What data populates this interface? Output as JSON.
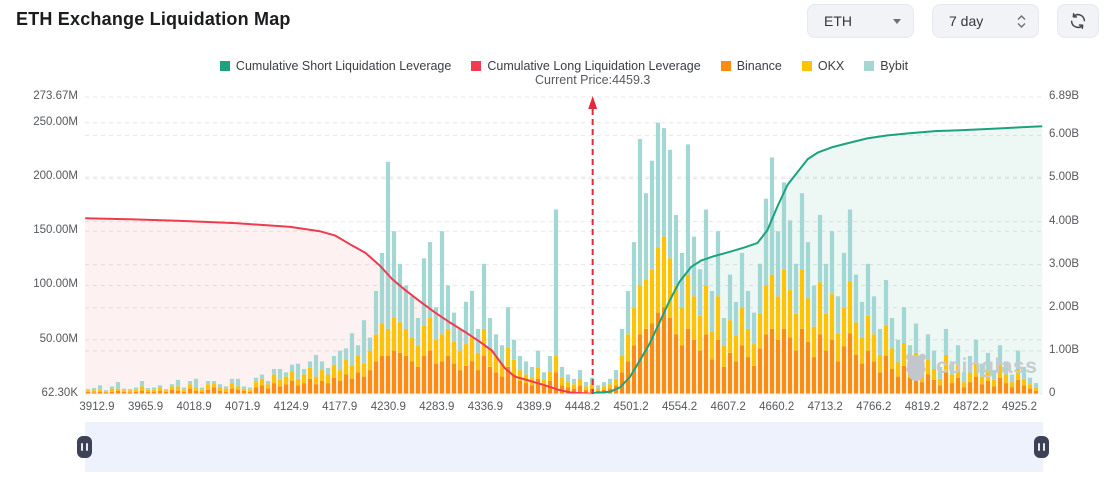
{
  "header": {
    "title": "ETH Exchange Liquidation Map"
  },
  "controls": {
    "symbol_select": {
      "value": "ETH"
    },
    "period_select": {
      "value": "7 day"
    }
  },
  "legend": {
    "items": [
      {
        "label": "Cumulative Short Liquidation Leverage",
        "color": "#1BA37E"
      },
      {
        "label": "Cumulative Long Liquidation Leverage",
        "color": "#F23B4C"
      },
      {
        "label": "Binance",
        "color": "#FD8C10"
      },
      {
        "label": "OKX",
        "color": "#FFC305"
      },
      {
        "label": "Bybit",
        "color": "#A2D7D3"
      }
    ]
  },
  "annotation": {
    "current_price_label": "Current Price:4459.3",
    "current_price": 4459.3
  },
  "watermark": {
    "text": "coinglass"
  },
  "chart_data": {
    "type": "bar",
    "subtype": "stacked-bars-with-cumulative-lines",
    "grid": true,
    "x_ticks": [
      3912.9,
      3965.9,
      4018.9,
      4071.9,
      4124.9,
      4177.9,
      4230.9,
      4283.9,
      4336.9,
      4389.9,
      4448.2,
      4501.2,
      4554.2,
      4607.2,
      4660.2,
      4713.2,
      4766.2,
      4819.2,
      4872.2,
      4925.2
    ],
    "current_price": 4459.3,
    "y_left": {
      "unit": "M",
      "max": 273.67,
      "labels": [
        {
          "text": "273.67M",
          "value": 273.67
        },
        {
          "text": "250.00M",
          "value": 250
        },
        {
          "text": "200.00M",
          "value": 200
        },
        {
          "text": "150.00M",
          "value": 150
        },
        {
          "text": "100.00M",
          "value": 100
        },
        {
          "text": "50.00M",
          "value": 50
        },
        {
          "text": "62.30K",
          "value": 0.0623
        }
      ]
    },
    "y_right": {
      "unit": "B",
      "max": 6.89,
      "labels": [
        {
          "text": "6.89B",
          "value": 6.89
        },
        {
          "text": "6.00B",
          "value": 6
        },
        {
          "text": "5.00B",
          "value": 5
        },
        {
          "text": "4.00B",
          "value": 4
        },
        {
          "text": "3.00B",
          "value": 3
        },
        {
          "text": "2.00B",
          "value": 2
        },
        {
          "text": "1.00B",
          "value": 1
        },
        {
          "text": "0",
          "value": 0
        }
      ]
    },
    "bars": {
      "unit": "M",
      "stack_order": [
        "Binance",
        "OKX",
        "Bybit"
      ],
      "colors": [
        "#FD8C10",
        "#FFC305",
        "#A2D7D3"
      ],
      "values": [
        [
          2,
          1.5,
          1
        ],
        [
          1.5,
          2,
          2
        ],
        [
          2,
          2,
          4
        ],
        [
          1.5,
          1,
          1
        ],
        [
          2,
          3,
          2
        ],
        [
          3,
          2,
          6
        ],
        [
          2,
          1.5,
          1.5
        ],
        [
          1.5,
          2,
          1
        ],
        [
          2,
          2,
          2
        ],
        [
          3,
          4,
          5
        ],
        [
          2,
          2,
          1.5
        ],
        [
          2,
          2,
          2
        ],
        [
          3,
          3,
          2
        ],
        [
          2,
          1.5,
          1
        ],
        [
          4,
          3,
          2
        ],
        [
          3,
          4,
          6
        ],
        [
          2,
          2,
          2
        ],
        [
          5,
          4,
          3
        ],
        [
          3,
          3,
          8
        ],
        [
          2,
          2,
          2
        ],
        [
          4,
          5,
          3
        ],
        [
          6,
          4,
          2
        ],
        [
          3,
          3,
          3
        ],
        [
          2,
          3,
          2
        ],
        [
          5,
          5,
          4
        ],
        [
          4,
          3,
          7
        ],
        [
          3,
          2,
          2
        ],
        [
          2,
          2,
          2
        ],
        [
          6,
          5,
          4
        ],
        [
          8,
          6,
          4
        ],
        [
          5,
          4,
          3
        ],
        [
          10,
          8,
          5
        ],
        [
          7,
          6,
          10
        ],
        [
          9,
          7,
          4
        ],
        [
          12,
          9,
          6
        ],
        [
          8,
          6,
          14
        ],
        [
          10,
          8,
          5
        ],
        [
          14,
          10,
          6
        ],
        [
          9,
          7,
          20
        ],
        [
          12,
          10,
          8
        ],
        [
          10,
          8,
          6
        ],
        [
          15,
          12,
          8
        ],
        [
          12,
          10,
          18
        ],
        [
          18,
          14,
          10
        ],
        [
          14,
          12,
          30
        ],
        [
          20,
          15,
          10
        ],
        [
          16,
          12,
          40
        ],
        [
          22,
          18,
          12
        ],
        [
          30,
          25,
          40
        ],
        [
          35,
          30,
          65
        ],
        [
          35,
          25,
          154
        ],
        [
          40,
          30,
          80
        ],
        [
          38,
          28,
          54
        ],
        [
          35,
          25,
          40
        ],
        [
          30,
          22,
          38
        ],
        [
          25,
          20,
          25
        ],
        [
          35,
          28,
          62
        ],
        [
          40,
          30,
          70
        ],
        [
          28,
          22,
          30
        ],
        [
          30,
          25,
          95
        ],
        [
          35,
          25,
          40
        ],
        [
          28,
          20,
          27
        ],
        [
          22,
          18,
          20
        ],
        [
          26,
          20,
          39
        ],
        [
          30,
          22,
          43
        ],
        [
          22,
          16,
          22
        ],
        [
          35,
          25,
          60
        ],
        [
          25,
          18,
          27
        ],
        [
          20,
          15,
          20
        ],
        [
          16,
          12,
          17
        ],
        [
          25,
          18,
          37
        ],
        [
          18,
          14,
          18
        ],
        [
          12,
          10,
          13
        ],
        [
          10,
          8,
          12
        ],
        [
          8,
          7,
          10
        ],
        [
          14,
          10,
          16
        ],
        [
          7,
          6,
          7
        ],
        [
          12,
          9,
          14
        ],
        [
          20,
          15,
          135
        ],
        [
          8,
          7,
          10
        ],
        [
          6,
          5,
          7
        ],
        [
          5,
          4,
          5
        ],
        [
          8,
          6,
          8
        ],
        [
          4,
          3,
          4
        ],
        [
          5,
          4,
          6
        ],
        [
          3,
          2,
          3
        ],
        [
          4,
          3,
          4
        ],
        [
          5,
          4,
          5
        ],
        [
          8,
          6,
          8
        ],
        [
          20,
          15,
          25
        ],
        [
          30,
          25,
          40
        ],
        [
          45,
          35,
          60
        ],
        [
          55,
          45,
          135
        ],
        [
          60,
          45,
          80
        ],
        [
          65,
          50,
          100
        ],
        [
          75,
          60,
          115
        ],
        [
          80,
          65,
          100
        ],
        [
          70,
          55,
          100
        ],
        [
          55,
          45,
          65
        ],
        [
          45,
          35,
          50
        ],
        [
          60,
          50,
          120
        ],
        [
          50,
          40,
          55
        ],
        [
          40,
          32,
          43
        ],
        [
          55,
          45,
          70
        ],
        [
          32,
          26,
          37
        ],
        [
          50,
          40,
          60
        ],
        [
          25,
          20,
          25
        ],
        [
          38,
          30,
          42
        ],
        [
          30,
          24,
          31
        ],
        [
          45,
          35,
          50
        ],
        [
          34,
          26,
          35
        ],
        [
          26,
          20,
          29
        ],
        [
          42,
          32,
          46
        ],
        [
          55,
          45,
          80
        ],
        [
          60,
          50,
          108
        ],
        [
          50,
          40,
          60
        ],
        [
          60,
          55,
          80
        ],
        [
          52,
          44,
          64
        ],
        [
          40,
          34,
          46
        ],
        [
          60,
          55,
          70
        ],
        [
          48,
          40,
          52
        ],
        [
          34,
          28,
          38
        ],
        [
          55,
          48,
          62
        ],
        [
          40,
          34,
          46
        ],
        [
          50,
          42,
          58
        ],
        [
          30,
          26,
          34
        ],
        [
          44,
          36,
          50
        ],
        [
          56,
          48,
          66
        ],
        [
          36,
          30,
          44
        ],
        [
          28,
          24,
          33
        ],
        [
          40,
          32,
          48
        ],
        [
          30,
          25,
          35
        ],
        [
          20,
          16,
          24
        ],
        [
          35,
          28,
          42
        ],
        [
          23,
          19,
          28
        ],
        [
          16,
          13,
          21
        ],
        [
          26,
          21,
          33
        ],
        [
          15,
          12,
          18
        ],
        [
          21,
          17,
          27
        ],
        [
          11,
          9,
          15
        ],
        [
          18,
          14,
          23
        ],
        [
          13,
          10,
          17
        ],
        [
          8,
          6,
          11
        ],
        [
          20,
          16,
          24
        ],
        [
          10,
          8,
          12
        ],
        [
          15,
          12,
          18
        ],
        [
          6,
          5,
          9
        ],
        [
          11,
          9,
          15
        ],
        [
          16,
          13,
          21
        ],
        [
          9,
          7,
          12
        ],
        [
          12,
          10,
          16
        ],
        [
          7,
          6,
          9
        ],
        [
          15,
          12,
          18
        ],
        [
          10,
          8,
          12
        ],
        [
          6,
          5,
          7
        ],
        [
          13,
          10,
          17
        ],
        [
          8,
          6,
          11
        ],
        [
          5,
          4,
          6
        ],
        [
          3,
          3,
          4
        ]
      ]
    },
    "lines": [
      {
        "name": "Cumulative Long Liquidation Leverage",
        "axis": "left",
        "unit": "M",
        "color": "#EF3B4E",
        "fill": "rgba(242,59,76,0.07)",
        "points": [
          [
            3900,
            162
          ],
          [
            3949,
            161
          ],
          [
            4004,
            159.5
          ],
          [
            4064,
            157.5
          ],
          [
            4124,
            154
          ],
          [
            4156,
            150
          ],
          [
            4173,
            146
          ],
          [
            4189,
            138
          ],
          [
            4206,
            130
          ],
          [
            4222,
            118
          ],
          [
            4235,
            106
          ],
          [
            4249,
            96
          ],
          [
            4266,
            85
          ],
          [
            4282,
            75
          ],
          [
            4298,
            66
          ],
          [
            4315,
            57
          ],
          [
            4331,
            48
          ],
          [
            4344,
            40
          ],
          [
            4358,
            24
          ],
          [
            4369,
            16
          ],
          [
            4386,
            12
          ],
          [
            4403,
            8
          ],
          [
            4419,
            4
          ],
          [
            4433,
            1.5
          ],
          [
            4458,
            0.3
          ]
        ]
      },
      {
        "name": "Cumulative Short Liquidation Leverage",
        "axis": "right",
        "unit": "B",
        "color": "#1BA37E",
        "fill": "rgba(27,163,126,0.08)",
        "points": [
          [
            4458,
            0.02
          ],
          [
            4478,
            0.05
          ],
          [
            4489,
            0.15
          ],
          [
            4500,
            0.4
          ],
          [
            4510,
            0.75
          ],
          [
            4521,
            1.15
          ],
          [
            4532,
            1.65
          ],
          [
            4543,
            2.15
          ],
          [
            4554,
            2.6
          ],
          [
            4567,
            2.95
          ],
          [
            4578,
            3.1
          ],
          [
            4592,
            3.2
          ],
          [
            4609,
            3.3
          ],
          [
            4625,
            3.4
          ],
          [
            4639,
            3.5
          ],
          [
            4650,
            3.8
          ],
          [
            4661,
            4.35
          ],
          [
            4672,
            4.85
          ],
          [
            4683,
            5.15
          ],
          [
            4694,
            5.45
          ],
          [
            4705,
            5.6
          ],
          [
            4720,
            5.72
          ],
          [
            4738,
            5.82
          ],
          [
            4759,
            5.93
          ],
          [
            4781,
            6.0
          ],
          [
            4805,
            6.05
          ],
          [
            4833,
            6.1
          ],
          [
            4860,
            6.12
          ],
          [
            4893,
            6.15
          ],
          [
            4920,
            6.18
          ],
          [
            4950,
            6.21
          ]
        ]
      }
    ]
  }
}
